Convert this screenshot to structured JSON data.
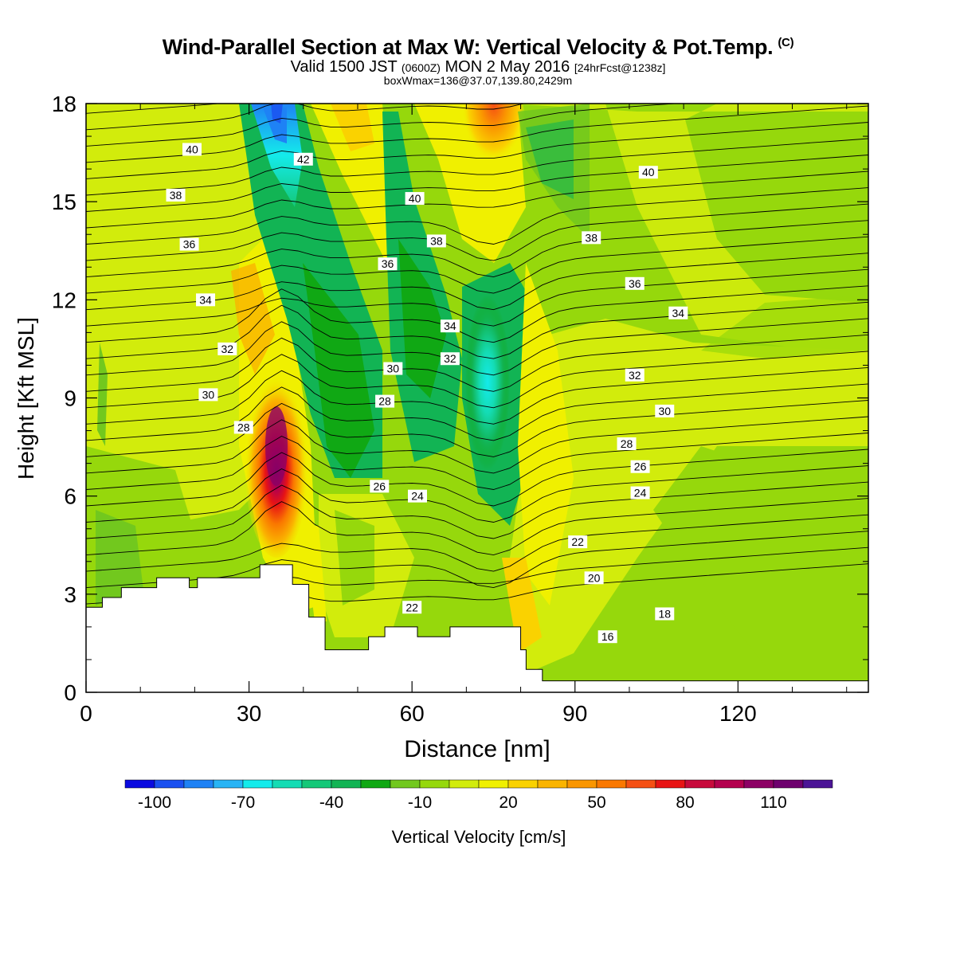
{
  "header": {
    "title": "Wind-Parallel Section at Max W: Vertical Velocity & Pot.Temp.",
    "copyright": "(C)",
    "valid_prefix": "Valid 1500 JST",
    "valid_utc": "(0600Z)",
    "valid_date": "MON 2 May 2016",
    "forecast": "[24hrFcst@1238z]",
    "box_info": "boxWmax=136@37.07,139.80,2429m"
  },
  "chart_data": {
    "type": "heatmap",
    "xlabel": "Distance [nm]",
    "ylabel": "Height [Kft MSL]",
    "xlim": [
      0,
      144
    ],
    "ylim": [
      0,
      18
    ],
    "x_ticks": [
      0,
      30,
      60,
      90,
      120
    ],
    "y_ticks": [
      0,
      3,
      6,
      9,
      12,
      15,
      18
    ],
    "colorbar": {
      "label": "Vertical Velocity [cm/s]",
      "min": -110,
      "step": 10,
      "tick_labels": [
        -100,
        -70,
        -40,
        -10,
        20,
        50,
        80,
        110
      ],
      "colors": [
        "#0a0ae0",
        "#1a50f0",
        "#1e82f5",
        "#28b4f5",
        "#14ebeb",
        "#14dcb4",
        "#14c878",
        "#12b454",
        "#10a814",
        "#72c81e",
        "#96d80c",
        "#d2ec0c",
        "#f0f000",
        "#fad200",
        "#fab400",
        "#fa9600",
        "#fa7800",
        "#f55014",
        "#e81414",
        "#c80a3c",
        "#b4004e",
        "#8c0064",
        "#6e006e",
        "#4b1496"
      ]
    },
    "theta_labels": [
      {
        "text": "40",
        "x": 19.5,
        "y": 16.6
      },
      {
        "text": "38",
        "x": 16.5,
        "y": 15.2
      },
      {
        "text": "36",
        "x": 19,
        "y": 13.7
      },
      {
        "text": "34",
        "x": 22,
        "y": 12
      },
      {
        "text": "32",
        "x": 26,
        "y": 10.5
      },
      {
        "text": "30",
        "x": 22.5,
        "y": 9.1
      },
      {
        "text": "28",
        "x": 29,
        "y": 8.1
      },
      {
        "text": "42",
        "x": 40,
        "y": 16.3
      },
      {
        "text": "40",
        "x": 60.5,
        "y": 15.1
      },
      {
        "text": "38",
        "x": 64.5,
        "y": 13.8
      },
      {
        "text": "36",
        "x": 55.5,
        "y": 13.1
      },
      {
        "text": "34",
        "x": 67,
        "y": 11.2
      },
      {
        "text": "32",
        "x": 67,
        "y": 10.2
      },
      {
        "text": "30",
        "x": 56.5,
        "y": 9.9
      },
      {
        "text": "28",
        "x": 55,
        "y": 8.9
      },
      {
        "text": "26",
        "x": 54,
        "y": 6.3
      },
      {
        "text": "24",
        "x": 61,
        "y": 6
      },
      {
        "text": "22",
        "x": 60,
        "y": 2.6
      },
      {
        "text": "40",
        "x": 103.5,
        "y": 15.9
      },
      {
        "text": "38",
        "x": 93,
        "y": 13.9
      },
      {
        "text": "36",
        "x": 101,
        "y": 12.5
      },
      {
        "text": "34",
        "x": 109,
        "y": 11.6
      },
      {
        "text": "32",
        "x": 101,
        "y": 9.7
      },
      {
        "text": "30",
        "x": 106.5,
        "y": 8.6
      },
      {
        "text": "28",
        "x": 99.5,
        "y": 7.6
      },
      {
        "text": "26",
        "x": 102,
        "y": 6.9
      },
      {
        "text": "24",
        "x": 102,
        "y": 6.1
      },
      {
        "text": "22",
        "x": 90.5,
        "y": 4.6
      },
      {
        "text": "20",
        "x": 93.5,
        "y": 3.5
      },
      {
        "text": "18",
        "x": 106.5,
        "y": 2.4
      },
      {
        "text": "16",
        "x": 96,
        "y": 1.7
      }
    ],
    "terrain": [
      [
        0,
        2.6
      ],
      [
        3,
        2.9
      ],
      [
        6.5,
        3.2
      ],
      [
        13,
        3.5
      ],
      [
        19,
        3.2
      ],
      [
        20.5,
        3.5
      ],
      [
        32,
        3.9
      ],
      [
        38,
        3.3
      ],
      [
        41,
        2.3
      ],
      [
        44,
        1.3
      ],
      [
        52,
        1.7
      ],
      [
        55,
        2
      ],
      [
        60,
        2
      ],
      [
        61,
        1.7
      ],
      [
        67,
        2
      ],
      [
        77,
        2
      ],
      [
        80,
        1.3
      ],
      [
        81,
        0.7
      ],
      [
        84,
        0.35
      ],
      [
        144,
        0.3
      ]
    ]
  }
}
